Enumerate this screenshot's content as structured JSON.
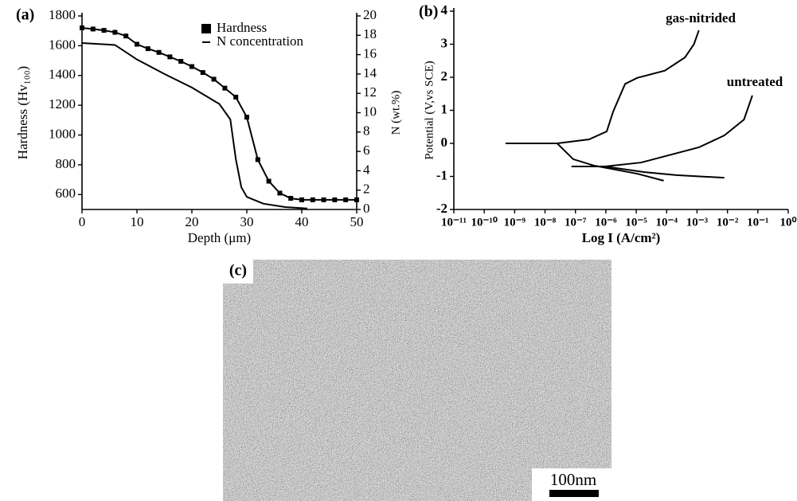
{
  "chart_data": [
    {
      "type": "line",
      "panel_label": "(a)",
      "xlabel": "Depth (μm)",
      "ylabel": "Hardness (Hv₁₀₀)",
      "y2label": "N (wt.%)",
      "xlim": [
        0,
        50
      ],
      "xticks": [
        0,
        10,
        20,
        30,
        40,
        50
      ],
      "ylim": [
        500,
        1800
      ],
      "yticks": [
        600,
        800,
        1000,
        1200,
        1400,
        1600,
        1800
      ],
      "y2lim": [
        0,
        20
      ],
      "y2ticks": [
        0,
        2,
        4,
        6,
        8,
        10,
        12,
        14,
        16,
        18,
        20
      ],
      "legend": "upper right",
      "series": [
        {
          "name": "Hardness",
          "color": "#000000",
          "marker": "square",
          "x": [
            0,
            2,
            4,
            6,
            8,
            10,
            12,
            14,
            16,
            18,
            20,
            22,
            24,
            26,
            28,
            30,
            32,
            34,
            36,
            38,
            40,
            42,
            44,
            46,
            48,
            50
          ],
          "values": [
            1720,
            1712,
            1703,
            1690,
            1665,
            1610,
            1580,
            1555,
            1525,
            1495,
            1460,
            1420,
            1375,
            1315,
            1255,
            1120,
            835,
            690,
            610,
            575,
            565,
            565,
            565,
            565,
            565,
            565
          ]
        },
        {
          "name": "N concentration",
          "color": "#000000",
          "marker": "none",
          "axis": "y2",
          "x": [
            0,
            6,
            10,
            15,
            20,
            25,
            27,
            28,
            29,
            30,
            33,
            37,
            41
          ],
          "values": [
            17.2,
            17.0,
            15.5,
            14.0,
            12.6,
            10.9,
            9.3,
            5.2,
            2.3,
            1.3,
            0.6,
            0.25,
            0.1
          ]
        }
      ]
    },
    {
      "type": "line",
      "panel_label": "(b)",
      "xlabel": "Log I (A/cm²)",
      "ylabel": "Potential (V,vs SCE)",
      "xscale": "log",
      "xlim": [
        1e-11,
        1
      ],
      "xticks": [
        {
          "value": 1e-11,
          "label": "10⁻¹¹"
        },
        {
          "value": 1e-10,
          "label": "10⁻¹⁰"
        },
        {
          "value": 1e-09,
          "label": "10⁻⁹"
        },
        {
          "value": 1e-08,
          "label": "10⁻⁸"
        },
        {
          "value": 1e-07,
          "label": "10⁻⁷"
        },
        {
          "value": 1e-06,
          "label": "10⁻⁶"
        },
        {
          "value": 1e-05,
          "label": "10⁻⁵"
        },
        {
          "value": 0.0001,
          "label": "10⁻⁴"
        },
        {
          "value": 0.001,
          "label": "10⁻³"
        },
        {
          "value": 0.01,
          "label": "10⁻²"
        },
        {
          "value": 0.1,
          "label": "10⁻¹"
        },
        {
          "value": 1,
          "label": "10⁰"
        }
      ],
      "ylim": [
        -2,
        4
      ],
      "yticks": [
        -2,
        -1,
        0,
        1,
        2,
        3,
        4
      ],
      "series": [
        {
          "name": "gas-nitrided",
          "color": "#000000",
          "x": [
            8e-05,
            1.1e-05,
            4e-07,
            8.5e-08,
            2.5e-08,
            null,
            5e-10,
            2.5e-08,
            2.8e-07,
            1.07e-06,
            1.74e-06,
            4.3e-06,
            1.07e-05,
            8.7e-05,
            0.0004,
            0.00079,
            0.00115
          ],
          "values": [
            -1.13,
            -0.92,
            -0.67,
            -0.48,
            0,
            null,
            0,
            0,
            0.12,
            0.36,
            0.96,
            1.8,
            1.98,
            2.2,
            2.6,
            3.0,
            3.42
          ]
        },
        {
          "name": "untreated",
          "color": "#000000",
          "x": [
            0.0079,
            0.00021,
            1.9e-05,
            9.3e-07,
            null,
            7.4e-08,
            9.3e-07,
            1.45e-05,
            0.000117,
            0.00115,
            0.0079,
            0.035,
            0.066
          ],
          "values": [
            -1.04,
            -0.96,
            -0.87,
            -0.7,
            null,
            -0.7,
            -0.7,
            -0.58,
            -0.36,
            -0.12,
            0.24,
            0.72,
            1.45
          ]
        }
      ]
    }
  ],
  "image": {
    "label": "(c)",
    "scale_bar": "100nm"
  }
}
